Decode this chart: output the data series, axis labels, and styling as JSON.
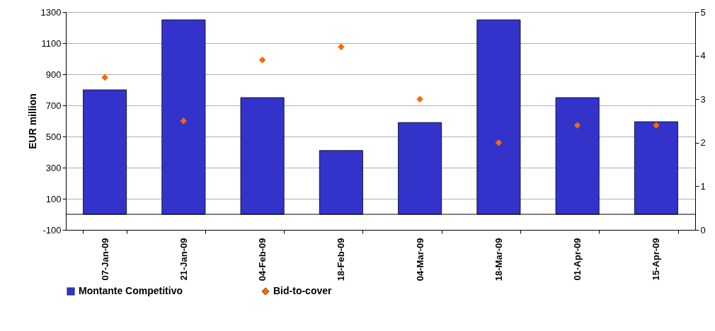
{
  "chart_data": {
    "type": "bar",
    "ylabel": "EUR million",
    "categories": [
      "07-Jan-09",
      "21-Jan-09",
      "04-Feb-09",
      "18-Feb-09",
      "04-Mar-09",
      "18-Mar-09",
      "01-Apr-09",
      "15-Apr-09"
    ],
    "series": [
      {
        "name": "Montante Competitivo",
        "color": "#3333cc",
        "values": [
          800,
          1250,
          750,
          410,
          590,
          1250,
          750,
          595
        ]
      },
      {
        "name": "Bid-to-cover",
        "type": "scatter",
        "axis": "y2",
        "color": "#ff6600",
        "values": [
          3.5,
          2.5,
          3.9,
          4.2,
          3.0,
          2.0,
          2.4,
          2.4
        ]
      }
    ],
    "marker": "diamond",
    "ylim": [
      -100,
      1300
    ],
    "yticks": [
      -100,
      100,
      300,
      500,
      700,
      900,
      1100,
      1300
    ],
    "y2lim": [
      0,
      5
    ],
    "y2ticks": [
      0,
      1,
      2,
      3,
      4,
      5
    ],
    "ref_lines": [
      {
        "axis": "y",
        "value": 0,
        "color": "#000000"
      }
    ],
    "grid": "y",
    "legend": "bottom"
  }
}
